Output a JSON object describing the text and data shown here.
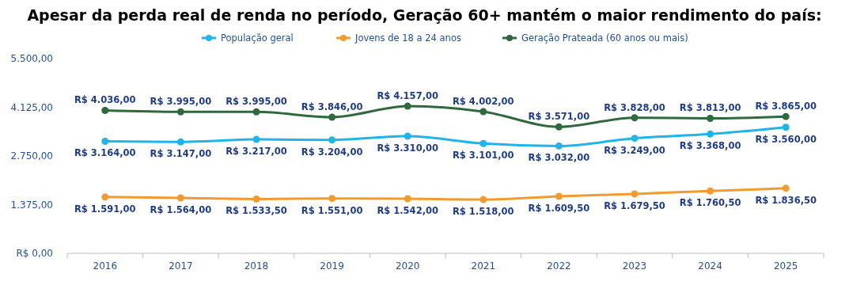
{
  "chart_data": {
    "type": "line",
    "title": "Apesar da perda real de renda no período, Geração 60+ mantém o maior rendimento do país:",
    "categories": [
      "2016",
      "2017",
      "2018",
      "2019",
      "2020",
      "2021",
      "2022",
      "2023",
      "2024",
      "2025"
    ],
    "series": [
      {
        "name": "População geral",
        "color": "#1fb4ea",
        "values": [
          3164,
          3147,
          3217,
          3204,
          3310,
          3101,
          3032,
          3249,
          3368,
          3560
        ],
        "value_labels": [
          "R$ 3.164,00",
          "R$ 3.147,00",
          "R$ 3.217,00",
          "R$ 3.204,00",
          "R$ 3.310,00",
          "R$ 3.101,00",
          "R$ 3.032,00",
          "R$ 3.249,00",
          "R$ 3.368,00",
          "R$ 3.560,00"
        ]
      },
      {
        "name": "Jovens de 18 a 24 anos",
        "color": "#f39a2f",
        "values": [
          1591,
          1564,
          1533.5,
          1551,
          1542,
          1518,
          1609.5,
          1679.5,
          1760.5,
          1836.5
        ],
        "value_labels": [
          "R$ 1.591,00",
          "R$ 1.564,00",
          "R$ 1.533,50",
          "R$ 1.551,00",
          "R$ 1.542,00",
          "R$ 1.518,00",
          "R$ 1.609,50",
          "R$ 1.679,50",
          "R$ 1.760,50",
          "R$ 1.836,50"
        ]
      },
      {
        "name": "Geração Prateada (60 anos ou mais)",
        "color": "#2e6a3c",
        "values": [
          4036,
          3995,
          3995,
          3846,
          4157,
          4002,
          3571,
          3828,
          3813,
          3865
        ],
        "value_labels": [
          "R$ 4.036,00",
          "R$ 3.995,00",
          "R$ 3.995,00",
          "R$ 3.846,00",
          "R$ 4.157,00",
          "R$ 4.002,00",
          "R$ 3.571,00",
          "R$ 3.828,00",
          "R$ 3.813,00",
          "R$ 3.865,00"
        ]
      }
    ],
    "ylim": [
      0,
      5500
    ],
    "yticks": [
      {
        "value": 0,
        "label": "R$ 0,00"
      },
      {
        "value": 1375,
        "label": "1.375,00"
      },
      {
        "value": 2750,
        "label": "2.750,00"
      },
      {
        "value": 4125,
        "label": "4.125,00"
      },
      {
        "value": 5500,
        "label": "5.500,00"
      }
    ],
    "grid": false,
    "legend": "top",
    "marker": "circle",
    "line_style": "solid"
  }
}
